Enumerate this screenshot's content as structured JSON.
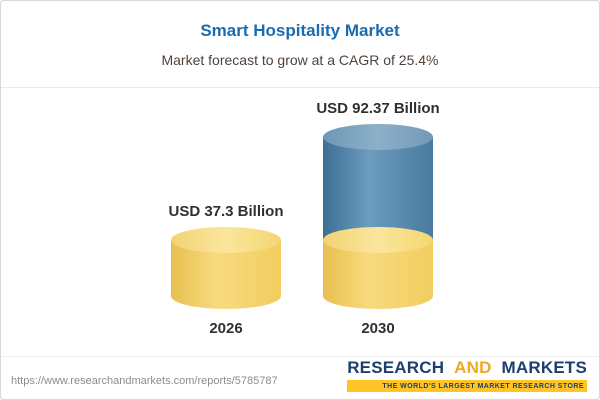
{
  "header": {
    "title": "Smart Hospitality Market",
    "subtitle": "Market forecast to grow at a CAGR of 25.4%"
  },
  "chart_data": {
    "type": "bar",
    "categories": [
      "2026",
      "2030"
    ],
    "values": [
      37.3,
      92.37
    ],
    "value_labels": [
      "USD 37.3 Billion",
      "USD 92.37 Billion"
    ],
    "unit": "USD Billion",
    "title": "Smart Hospitality Market",
    "subtitle": "Market forecast to grow at a CAGR of 25.4%",
    "cagr": "25.4%",
    "legend_position": "none",
    "grid": false,
    "colors": {
      "base_segment": "#F2CD5E",
      "base_segment_cap": "#FAE69C",
      "growth_segment": "#4A7BA0",
      "growth_segment_cap": "#8DB0C9",
      "title_accent": "#1A6CB0"
    }
  },
  "footer": {
    "url": "https://www.researchandmarkets.com/reports/5785787",
    "logo": {
      "research": "RESEARCH",
      "and": "AND",
      "markets": "MARKETS",
      "tagline": "THE WORLD'S LARGEST MARKET RESEARCH STORE"
    }
  }
}
